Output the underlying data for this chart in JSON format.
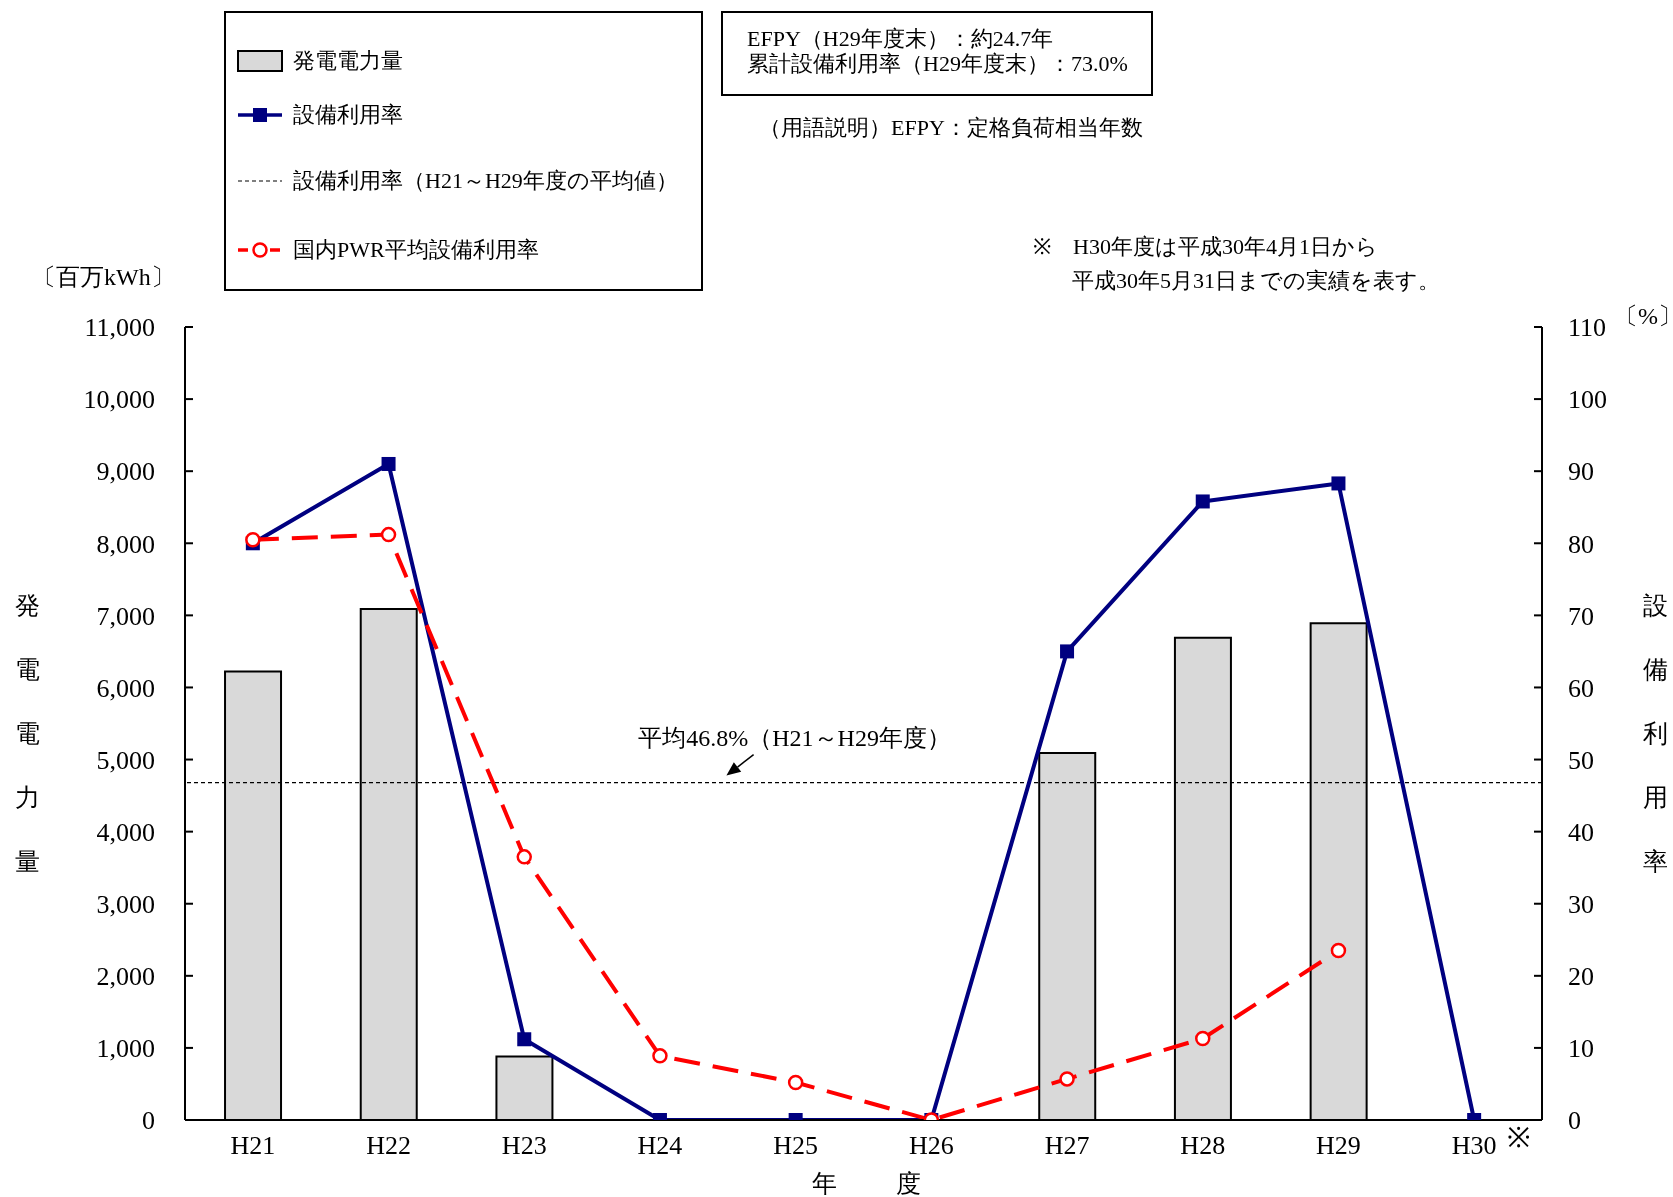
{
  "chart_data": {
    "type": "bar",
    "categories": [
      "H21",
      "H22",
      "H23",
      "H24",
      "H25",
      "H26",
      "H27",
      "H28",
      "H29",
      "H30"
    ],
    "series": [
      {
        "name": "発電電力量",
        "color": "#d9d9d9",
        "values": [
          6220,
          7090,
          880,
          0,
          0,
          0,
          5090,
          6690,
          6890,
          0
        ]
      },
      {
        "type": "line",
        "name": "設備利用率",
        "color": "#000080",
        "axis": "y2",
        "marker": "square",
        "line_style": "solid",
        "values": [
          80.0,
          91.0,
          11.2,
          0,
          0,
          0,
          65.0,
          85.8,
          88.3,
          0
        ]
      },
      {
        "type": "line",
        "name": "国内PWR平均設備利用率",
        "color": "#ff0000",
        "axis": "y2",
        "marker": "circle",
        "line_style": "dashed",
        "values": [
          80.5,
          81.2,
          36.5,
          8.9,
          5.2,
          0,
          5.7,
          11.3,
          23.5,
          null
        ]
      }
    ],
    "annotations": [
      "〔百万kWh〕",
      "〔%〕",
      "設備利用率（H21～H29年度の平均値）",
      "EFPY（H29年度末）：約24.7年",
      "累計設備利用率（H29年度末）：73.0%",
      "（用語説明）EFPY：定格負荷相当年数",
      "※　H30年度は平成30年4月1日から",
      "平成30年5月31日までの実績を表す。",
      "※"
    ],
    "ref_lines": [
      {
        "axis": "y2",
        "value": 46.8,
        "label": "平均46.8%（H21～H29年度）",
        "color": "#000000",
        "line_style": "dashed"
      }
    ],
    "ylim": [
      0,
      11000
    ],
    "yticks": [
      0,
      {
        "value": 1000,
        "label": "1,000"
      },
      {
        "value": 2000,
        "label": "2,000"
      },
      {
        "value": 3000,
        "label": "3,000"
      },
      {
        "value": 4000,
        "label": "4,000"
      },
      {
        "value": 5000,
        "label": "5,000"
      },
      {
        "value": 6000,
        "label": "6,000"
      },
      {
        "value": 7000,
        "label": "7,000"
      },
      {
        "value": 8000,
        "label": "8,000"
      },
      {
        "value": 9000,
        "label": "9,000"
      },
      {
        "value": 10000,
        "label": "10,000"
      },
      {
        "value": 11000,
        "label": "11,000"
      }
    ],
    "y2lim": [
      0,
      110
    ],
    "y2ticks": [
      0,
      10,
      20,
      30,
      40,
      50,
      60,
      70,
      80,
      90,
      100,
      110
    ],
    "xlabel": "年度",
    "ylabel": "発電電力量",
    "y2label": "設備利用率",
    "legend": "top left"
  }
}
